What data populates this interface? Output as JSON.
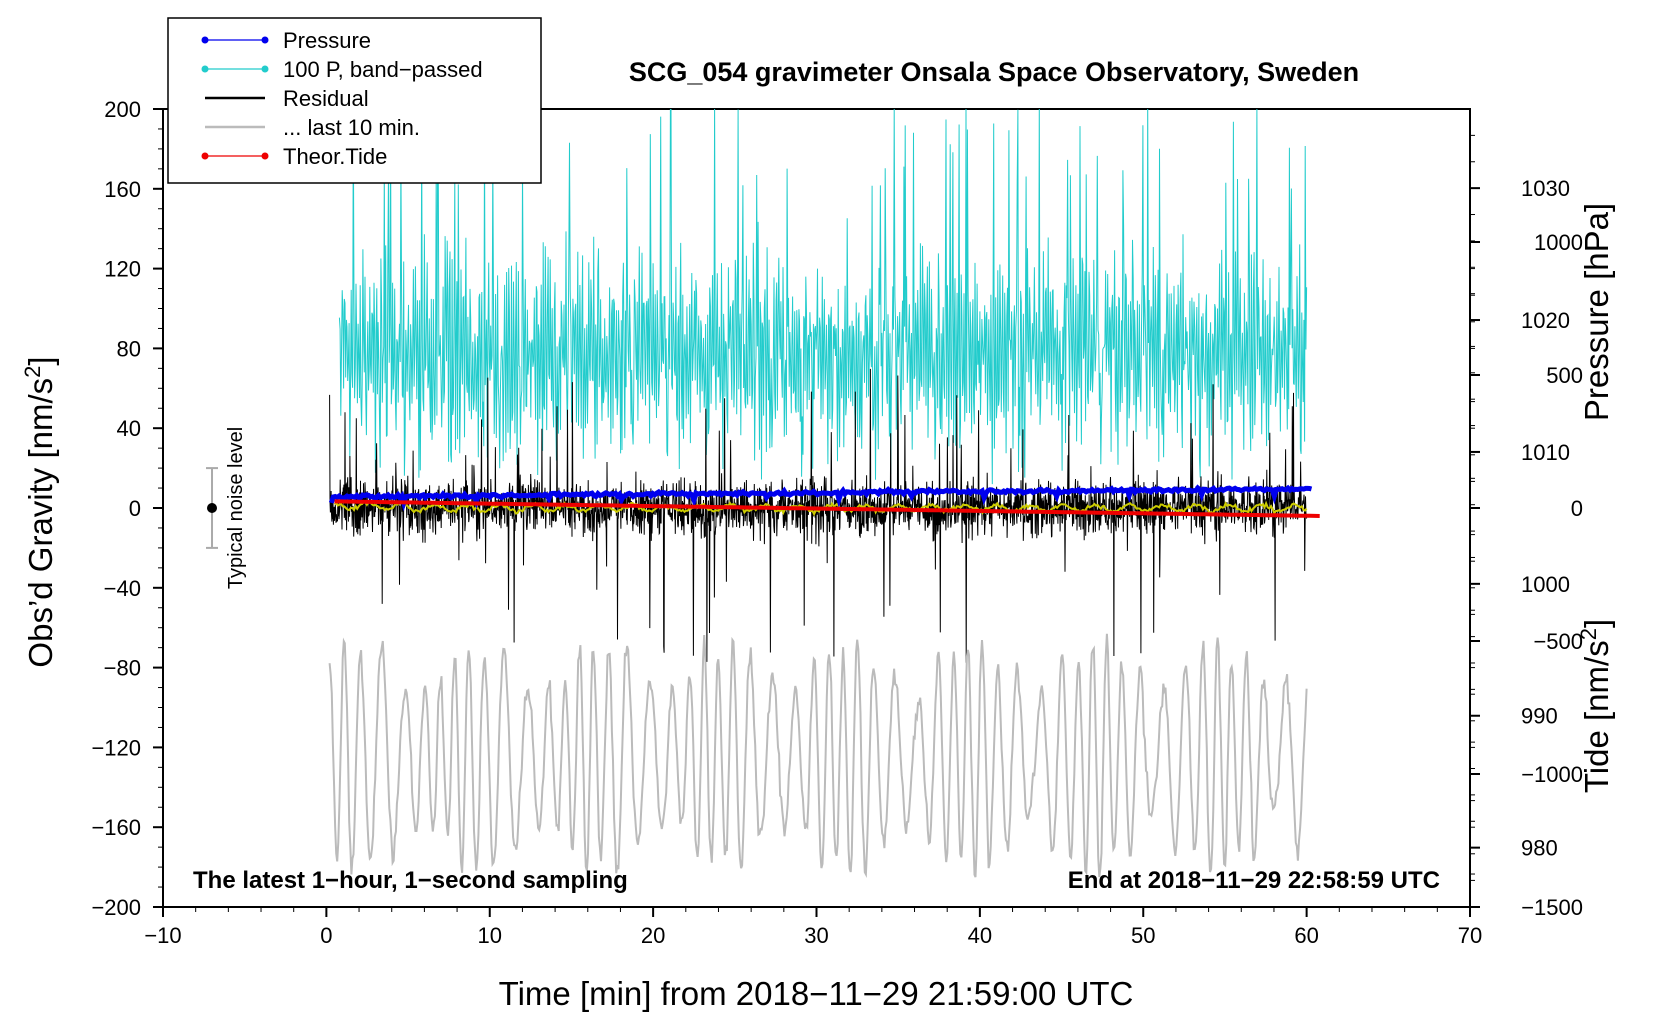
{
  "chart_data": {
    "type": "line",
    "title": "SCG_054 gravimeter Onsala Space Observatory, Sweden",
    "xlabel": "Time [min] from 2018−11−29 21:59:00 UTC",
    "ylabel_main": "Obs’d Gravity [nm/s",
    "ylabel_sup": "2",
    "ylabel_close": "]",
    "ylabel_pressure": "Pressure [hPa]",
    "ylabel_tide": "Tide [nm/s",
    "ylabel_tide_sup": "2",
    "ylabel_tide_close": "]",
    "xlim": [
      -10,
      70
    ],
    "ylim": [
      -200,
      200
    ],
    "pressure_lim": [
      975.5,
      1036
    ],
    "tide_lim": [
      -1500,
      1500
    ],
    "x_ticks": [
      {
        "v": -10,
        "label": "−10"
      },
      {
        "v": 0,
        "label": "0"
      },
      {
        "v": 10,
        "label": "10"
      },
      {
        "v": 20,
        "label": "20"
      },
      {
        "v": 30,
        "label": "30"
      },
      {
        "v": 40,
        "label": "40"
      },
      {
        "v": 50,
        "label": "50"
      },
      {
        "v": 60,
        "label": "60"
      },
      {
        "v": 70,
        "label": "70"
      }
    ],
    "y_ticks": [
      {
        "v": 200,
        "label": "200"
      },
      {
        "v": 160,
        "label": "160"
      },
      {
        "v": 120,
        "label": "120"
      },
      {
        "v": 80,
        "label": "80"
      },
      {
        "v": 40,
        "label": "40"
      },
      {
        "v": 0,
        "label": "0"
      },
      {
        "v": -40,
        "label": "−40"
      },
      {
        "v": -80,
        "label": "−80"
      },
      {
        "v": -120,
        "label": "−120"
      },
      {
        "v": -160,
        "label": "−160"
      },
      {
        "v": -200,
        "label": "−200"
      }
    ],
    "pressure_ticks": [
      {
        "v": 1030,
        "label": "1030"
      },
      {
        "v": 1020,
        "label": "1020"
      },
      {
        "v": 1010,
        "label": "1010"
      },
      {
        "v": 1000,
        "label": "1000"
      },
      {
        "v": 990,
        "label": "990"
      },
      {
        "v": 980,
        "label": "980"
      }
    ],
    "tide_ticks": [
      {
        "v": 1000,
        "label": "1000"
      },
      {
        "v": 500,
        "label": "500"
      },
      {
        "v": 0,
        "label": "0"
      },
      {
        "v": -500,
        "label": "−500"
      },
      {
        "v": -1000,
        "label": "−1000"
      },
      {
        "v": -1500,
        "label": "−1500"
      }
    ],
    "legend": [
      {
        "name": "Pressure",
        "color": "#0000ee",
        "marker": true
      },
      {
        "name": "100 P, band−passed",
        "color": "#22cccc",
        "marker": true
      },
      {
        "name": "Residual",
        "color": "#000000",
        "marker": false
      },
      {
        "name": "... last 10 min.",
        "color": "#bbbbbb",
        "marker": false
      },
      {
        "name": "Theor.Tide",
        "color": "#ee0000",
        "marker": true
      }
    ],
    "annotations": {
      "bottom_left": "The latest 1−hour, 1−second sampling",
      "bottom_right": "End at 2018−11−29 22:58:59 UTC",
      "noise_label": "Typical noise level"
    },
    "series": [
      {
        "name": "Pressure",
        "axis": "pressure",
        "x_range": [
          0.3,
          60.3
        ],
        "start": 1006.6,
        "end": 1007.2,
        "mean": 1006.9,
        "color": "#0000ee"
      },
      {
        "name": "100 P, band−passed",
        "axis": "gravity",
        "x_range": [
          0.8,
          60.0
        ],
        "center": 78,
        "typical_min": 15,
        "typical_max": 160,
        "extreme_max": 200,
        "color": "#22cccc"
      },
      {
        "name": "Residual",
        "axis": "gravity",
        "x_range": [
          0.2,
          60.0
        ],
        "center": 0,
        "typical_amplitude": 30,
        "extreme_max": 70,
        "extreme_min": -78,
        "color": "#000000"
      },
      {
        "name": "Residual (smoothed)",
        "axis": "gravity",
        "x_range": [
          0.5,
          60.0
        ],
        "center": 0,
        "amplitude": 2,
        "color": "#cccc00"
      },
      {
        "name": "... last 10 min.",
        "axis": "gravity",
        "x_range": [
          0.2,
          60.0
        ],
        "center": -125,
        "min": -185,
        "max": -60,
        "color": "#bbbbbb"
      },
      {
        "name": "Theor.Tide",
        "axis": "tide",
        "x_range": [
          0.5,
          60.8
        ],
        "start": 25,
        "end": -30,
        "color": "#ee0000"
      }
    ],
    "noise_bar": {
      "x": -7,
      "center": 0,
      "half_range": 20
    }
  }
}
